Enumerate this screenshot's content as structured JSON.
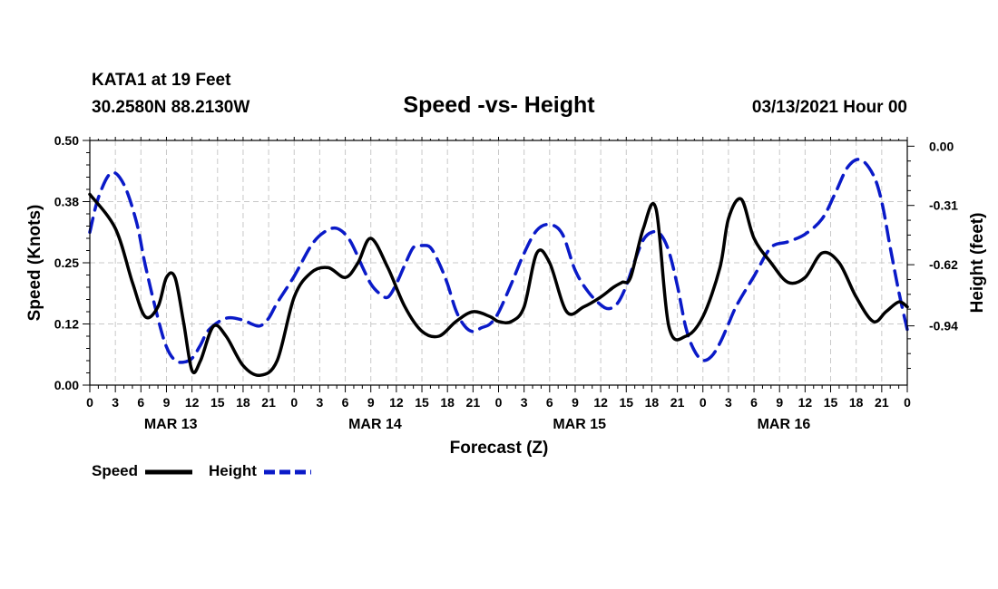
{
  "header": {
    "station": "KATA1 at 19 Feet",
    "coords": "30.2580N 88.2130W",
    "title": "Speed -vs- Height",
    "run": "03/13/2021 Hour 00"
  },
  "chart_data": {
    "type": "line",
    "title": "Speed -vs- Height",
    "xlabel": "Forecast (Z)",
    "ylabel_left": "Speed (Knots)",
    "ylabel_right": "Height (feet)",
    "x_range_hours": [
      0,
      96
    ],
    "ylim_left": [
      0,
      0.5
    ],
    "ylim_right": [
      -1.25,
      0.03
    ],
    "left_ticks": [
      {
        "v": 0.0,
        "label": "0.00"
      },
      {
        "v": 0.125,
        "label": "0.12"
      },
      {
        "v": 0.25,
        "label": "0.25"
      },
      {
        "v": 0.375,
        "label": "0.38"
      },
      {
        "v": 0.5,
        "label": "0.50"
      }
    ],
    "right_ticks": [
      {
        "v": 0.0,
        "label": "0.00"
      },
      {
        "v": -0.31,
        "label": "-0.31"
      },
      {
        "v": -0.62,
        "label": "-0.62"
      },
      {
        "v": -0.94,
        "label": "-0.94"
      }
    ],
    "x_ticks": [
      {
        "h": 0,
        "label": "0"
      },
      {
        "h": 3,
        "label": "3"
      },
      {
        "h": 6,
        "label": "6"
      },
      {
        "h": 9,
        "label": "9"
      },
      {
        "h": 12,
        "label": "12"
      },
      {
        "h": 15,
        "label": "15"
      },
      {
        "h": 18,
        "label": "18"
      },
      {
        "h": 21,
        "label": "21"
      },
      {
        "h": 24,
        "label": "0"
      },
      {
        "h": 27,
        "label": "3"
      },
      {
        "h": 30,
        "label": "6"
      },
      {
        "h": 33,
        "label": "9"
      },
      {
        "h": 36,
        "label": "12"
      },
      {
        "h": 39,
        "label": "15"
      },
      {
        "h": 42,
        "label": "18"
      },
      {
        "h": 45,
        "label": "21"
      },
      {
        "h": 48,
        "label": "0"
      },
      {
        "h": 51,
        "label": "3"
      },
      {
        "h": 54,
        "label": "6"
      },
      {
        "h": 57,
        "label": "9"
      },
      {
        "h": 60,
        "label": "12"
      },
      {
        "h": 63,
        "label": "15"
      },
      {
        "h": 66,
        "label": "18"
      },
      {
        "h": 69,
        "label": "21"
      },
      {
        "h": 72,
        "label": "0"
      },
      {
        "h": 75,
        "label": "3"
      },
      {
        "h": 78,
        "label": "6"
      },
      {
        "h": 81,
        "label": "9"
      },
      {
        "h": 84,
        "label": "12"
      },
      {
        "h": 87,
        "label": "15"
      },
      {
        "h": 90,
        "label": "18"
      },
      {
        "h": 93,
        "label": "21"
      },
      {
        "h": 96,
        "label": "0"
      }
    ],
    "day_labels": [
      {
        "h": 9.5,
        "label": "MAR 13"
      },
      {
        "h": 33.5,
        "label": "MAR 14"
      },
      {
        "h": 57.5,
        "label": "MAR 15"
      },
      {
        "h": 81.5,
        "label": "MAR 16"
      }
    ],
    "series": [
      {
        "name": "Speed",
        "axis": "left",
        "color": "#000000",
        "style": "solid",
        "x": [
          0,
          3,
          5,
          6.5,
          8,
          9,
          10,
          11,
          12,
          13,
          14.5,
          16,
          18,
          20,
          22,
          24,
          26,
          28,
          30,
          31.5,
          33,
          35,
          37,
          39,
          41,
          43,
          45,
          47,
          48,
          49.5,
          51,
          52.5,
          54,
          56,
          58,
          60,
          61.5,
          62.5,
          63.5,
          65,
          66.5,
          68,
          70,
          72,
          74,
          75,
          76.5,
          78,
          80,
          82,
          84,
          86,
          88,
          90,
          92,
          93.5,
          95,
          96
        ],
        "y": [
          0.39,
          0.32,
          0.21,
          0.14,
          0.16,
          0.22,
          0.22,
          0.13,
          0.03,
          0.05,
          0.12,
          0.1,
          0.04,
          0.02,
          0.05,
          0.18,
          0.23,
          0.24,
          0.22,
          0.25,
          0.3,
          0.24,
          0.16,
          0.11,
          0.1,
          0.13,
          0.15,
          0.14,
          0.13,
          0.13,
          0.16,
          0.27,
          0.25,
          0.15,
          0.16,
          0.18,
          0.2,
          0.21,
          0.22,
          0.32,
          0.36,
          0.12,
          0.1,
          0.14,
          0.24,
          0.34,
          0.38,
          0.3,
          0.25,
          0.21,
          0.22,
          0.27,
          0.25,
          0.18,
          0.13,
          0.15,
          0.17,
          0.16
        ]
      },
      {
        "name": "Height",
        "axis": "right",
        "color": "#0a1ac8",
        "style": "dashed",
        "x": [
          0,
          1,
          2.5,
          4,
          5.5,
          6.5,
          8,
          9,
          10,
          11,
          12,
          13,
          14,
          16,
          18,
          19,
          20,
          21,
          22,
          24,
          26,
          27.5,
          29,
          30.5,
          32,
          33,
          34,
          35,
          36,
          37,
          38,
          39,
          40,
          41,
          42,
          43,
          44,
          45,
          46,
          47,
          48,
          49.5,
          51,
          52.5,
          54,
          55.5,
          57,
          58.5,
          60,
          61,
          62,
          63,
          64,
          65,
          66,
          67,
          68,
          69,
          70,
          71,
          72,
          73,
          74,
          75,
          76,
          78,
          80,
          82,
          84,
          86,
          87.5,
          89,
          90.5,
          92,
          93,
          94,
          95,
          96
        ],
        "y": [
          -0.45,
          -0.27,
          -0.14,
          -0.2,
          -0.4,
          -0.62,
          -0.9,
          -1.05,
          -1.12,
          -1.13,
          -1.11,
          -1.04,
          -0.96,
          -0.9,
          -0.91,
          -0.93,
          -0.94,
          -0.9,
          -0.82,
          -0.68,
          -0.52,
          -0.45,
          -0.43,
          -0.49,
          -0.63,
          -0.72,
          -0.77,
          -0.79,
          -0.72,
          -0.62,
          -0.53,
          -0.52,
          -0.53,
          -0.61,
          -0.72,
          -0.86,
          -0.94,
          -0.97,
          -0.95,
          -0.93,
          -0.87,
          -0.72,
          -0.56,
          -0.44,
          -0.41,
          -0.46,
          -0.65,
          -0.76,
          -0.83,
          -0.85,
          -0.82,
          -0.73,
          -0.6,
          -0.49,
          -0.45,
          -0.46,
          -0.55,
          -0.73,
          -0.95,
          -1.07,
          -1.12,
          -1.1,
          -1.03,
          -0.93,
          -0.83,
          -0.68,
          -0.53,
          -0.5,
          -0.46,
          -0.38,
          -0.25,
          -0.11,
          -0.07,
          -0.15,
          -0.29,
          -0.53,
          -0.76,
          -0.96
        ]
      }
    ],
    "legend": {
      "position": "bottom-left",
      "speed_label": "Speed",
      "height_label": "Height"
    }
  }
}
